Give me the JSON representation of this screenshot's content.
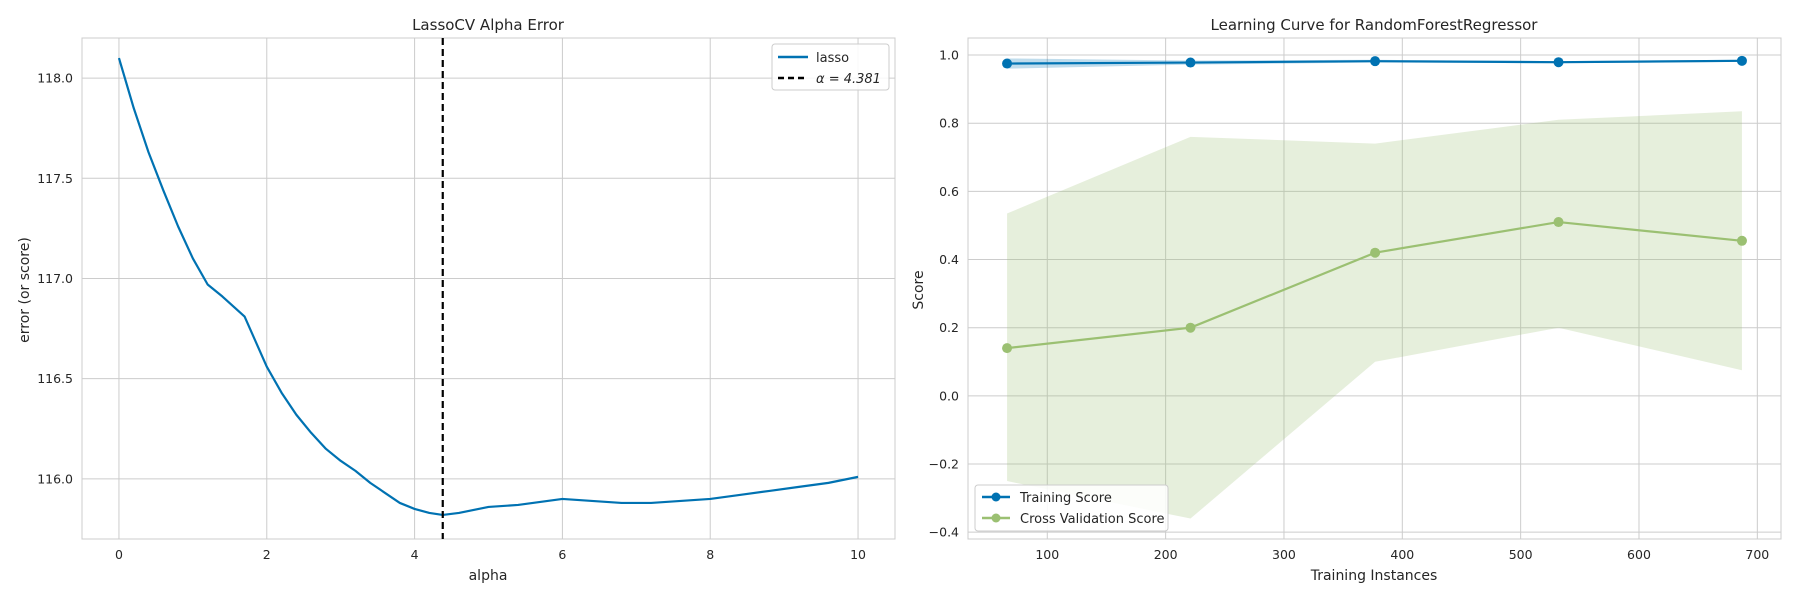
{
  "chart_data": [
    {
      "type": "line",
      "title": "LassoCV Alpha Error",
      "xlabel": "alpha",
      "ylabel": "error (or score)",
      "xlim": [
        -0.5,
        10.5
      ],
      "ylim": [
        115.7,
        118.2
      ],
      "xticks": [
        0,
        2,
        4,
        6,
        8,
        10
      ],
      "yticks": [
        116.0,
        116.5,
        117.0,
        117.5,
        118.0
      ],
      "xtick_labels": [
        "0",
        "2",
        "4",
        "6",
        "8",
        "10"
      ],
      "ytick_labels": [
        "116.0",
        "116.5",
        "117.0",
        "117.5",
        "118.0"
      ],
      "grid": true,
      "legend_position": "top-right",
      "series": [
        {
          "name": "lasso",
          "color": "#0072B2",
          "x": [
            0,
            0.2,
            0.4,
            0.6,
            0.8,
            1.0,
            1.2,
            1.4,
            1.7,
            2.0,
            2.2,
            2.4,
            2.6,
            2.8,
            3.0,
            3.2,
            3.4,
            3.6,
            3.8,
            4.0,
            4.2,
            4.381,
            4.6,
            5.0,
            5.4,
            5.8,
            6.0,
            6.4,
            6.8,
            7.2,
            7.6,
            8.0,
            8.4,
            8.8,
            9.2,
            9.6,
            10.0
          ],
          "y": [
            118.1,
            117.85,
            117.63,
            117.44,
            117.26,
            117.1,
            116.97,
            116.91,
            116.81,
            116.56,
            116.43,
            116.32,
            116.23,
            116.15,
            116.09,
            116.04,
            115.98,
            115.93,
            115.88,
            115.85,
            115.83,
            115.82,
            115.83,
            115.86,
            115.87,
            115.89,
            115.9,
            115.89,
            115.88,
            115.88,
            115.89,
            115.9,
            115.92,
            115.94,
            115.96,
            115.98,
            116.01
          ]
        }
      ],
      "vline": {
        "x": 4.381,
        "label": "α = 4.381",
        "color": "#000000"
      }
    },
    {
      "type": "line",
      "title": "Learning Curve for RandomForestRegressor",
      "xlabel": "Training Instances",
      "ylabel": "Score",
      "xlim": [
        33,
        720
      ],
      "ylim": [
        -0.42,
        1.05
      ],
      "xticks": [
        100,
        200,
        300,
        400,
        500,
        600,
        700
      ],
      "yticks": [
        -0.4,
        -0.2,
        0.0,
        0.2,
        0.4,
        0.6,
        0.8,
        1.0
      ],
      "xtick_labels": [
        "100",
        "200",
        "300",
        "400",
        "500",
        "600",
        "700"
      ],
      "ytick_labels": [
        "−0.4",
        "−0.2",
        "0.0",
        "0.2",
        "0.4",
        "0.6",
        "0.8",
        "1.0"
      ],
      "grid": true,
      "legend_position": "bottom-left",
      "series": [
        {
          "name": "Training Score",
          "color": "#0072B2",
          "x": [
            66,
            221,
            377,
            532,
            687
          ],
          "y": [
            0.975,
            0.978,
            0.982,
            0.979,
            0.983
          ],
          "band_lower": [
            0.96,
            0.972,
            0.978,
            0.976,
            0.98
          ],
          "band_upper": [
            0.99,
            0.984,
            0.986,
            0.982,
            0.986
          ]
        },
        {
          "name": "Cross Validation Score",
          "color": "#9BC072",
          "x": [
            66,
            221,
            377,
            532,
            687
          ],
          "y": [
            0.14,
            0.2,
            0.42,
            0.51,
            0.455
          ],
          "band_lower": [
            -0.25,
            -0.36,
            0.1,
            0.2,
            0.075
          ],
          "band_upper": [
            0.535,
            0.76,
            0.74,
            0.81,
            0.835
          ]
        }
      ]
    }
  ]
}
